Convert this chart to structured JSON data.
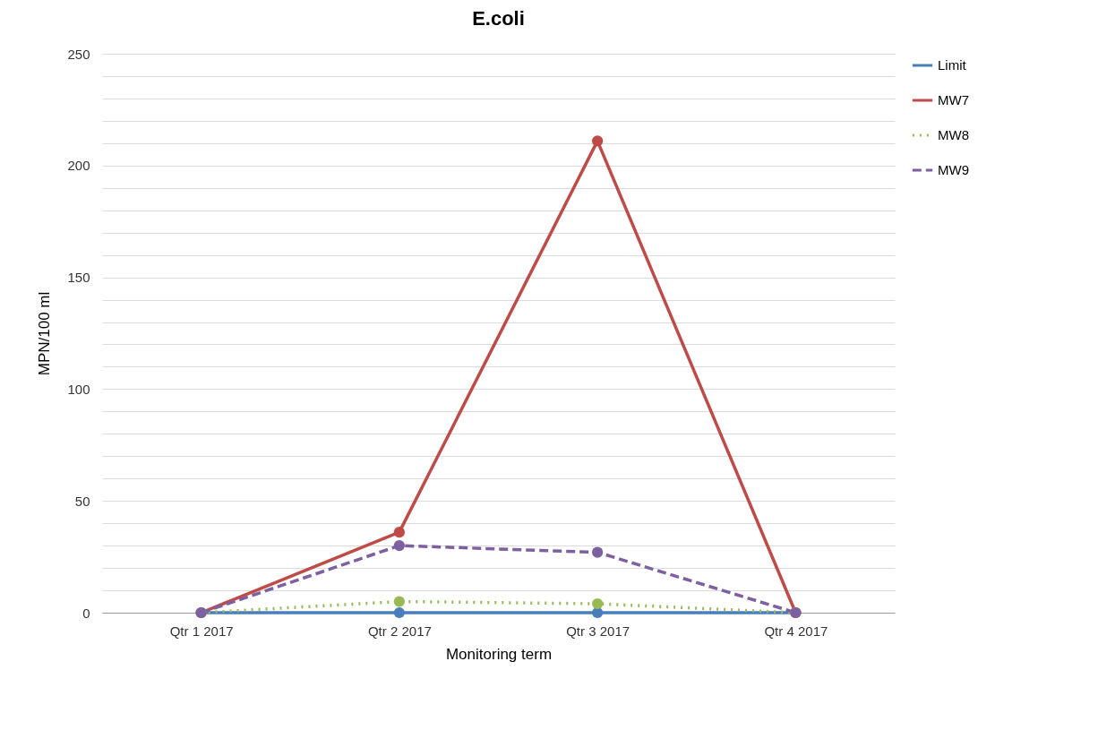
{
  "chart_data": {
    "type": "line",
    "title": "E.coli",
    "xlabel": "Monitoring term",
    "ylabel": "MPN/100 ml",
    "categories": [
      "Qtr 1 2017",
      "Qtr 2 2017",
      "Qtr 3 2017",
      "Qtr 4 2017"
    ],
    "series": [
      {
        "name": "Limit",
        "color": "#4a7ebb",
        "line_style": "solid",
        "values": [
          0,
          0,
          0,
          0
        ]
      },
      {
        "name": "MW7",
        "color": "#be4b48",
        "line_style": "solid",
        "values": [
          0,
          36,
          211,
          0
        ]
      },
      {
        "name": "MW8",
        "color": "#98b954",
        "line_style": "dotted",
        "values": [
          0,
          5,
          4,
          0
        ]
      },
      {
        "name": "MW9",
        "color": "#7d60a0",
        "line_style": "dashed",
        "values": [
          0,
          30,
          27,
          0
        ]
      }
    ],
    "ylim": [
      0,
      250
    ],
    "yticks": [
      0,
      {
        "value": 10,
        "label": null
      },
      {
        "value": 20,
        "label": null
      },
      {
        "value": 30,
        "label": null
      },
      {
        "value": 40,
        "label": null
      },
      50,
      {
        "value": 60,
        "label": null
      },
      {
        "value": 70,
        "label": null
      },
      {
        "value": 80,
        "label": null
      },
      {
        "value": 90,
        "label": null
      },
      100,
      {
        "value": 110,
        "label": null
      },
      {
        "value": 120,
        "label": null
      },
      {
        "value": 130,
        "label": null
      },
      {
        "value": 140,
        "label": null
      },
      150,
      {
        "value": 160,
        "label": null
      },
      {
        "value": 170,
        "label": null
      },
      {
        "value": 180,
        "label": null
      },
      {
        "value": 190,
        "label": null
      },
      200,
      {
        "value": 210,
        "label": null
      },
      {
        "value": 220,
        "label": null
      },
      {
        "value": 230,
        "label": null
      },
      {
        "value": 240,
        "label": null
      },
      250
    ],
    "grid": "y",
    "legend": "right",
    "marker": "circle"
  }
}
